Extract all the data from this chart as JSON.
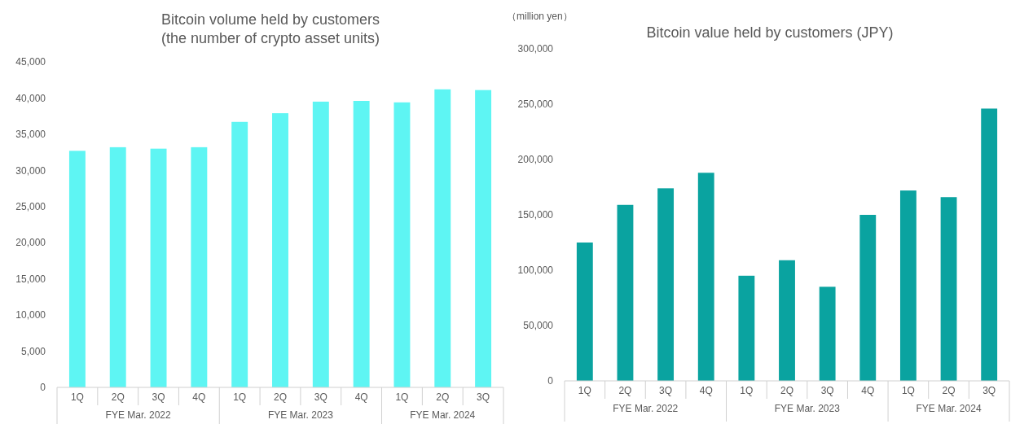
{
  "chart_data": [
    {
      "type": "bar",
      "title": "Bitcoin volume held by customers\n(the number of crypto asset units)",
      "categories": [
        "1Q",
        "2Q",
        "3Q",
        "4Q",
        "1Q",
        "2Q",
        "3Q",
        "4Q",
        "1Q",
        "2Q",
        "3Q"
      ],
      "values": [
        32700,
        33200,
        33000,
        33200,
        36700,
        37900,
        39500,
        39600,
        39400,
        41200,
        41100
      ],
      "color": "#5ef5f3",
      "ylim": [
        0,
        45000
      ],
      "yticks": [
        {
          "value": 0,
          "label": "0"
        },
        {
          "value": 5000,
          "label": "5,000"
        },
        {
          "value": 10000,
          "label": "10,000"
        },
        {
          "value": 15000,
          "label": "15,000"
        },
        {
          "value": 20000,
          "label": "20,000"
        },
        {
          "value": 25000,
          "label": "25,000"
        },
        {
          "value": 30000,
          "label": "30,000"
        },
        {
          "value": 35000,
          "label": "35,000"
        },
        {
          "value": 40000,
          "label": "40,000"
        },
        {
          "value": 45000,
          "label": "45,000"
        }
      ],
      "annotations": [
        "FYE Mar. 2022",
        "FYE Mar. 2023",
        "FYE Mar. 2024"
      ],
      "grid": false
    },
    {
      "type": "bar",
      "title": "Bitcoin value held by customers (JPY)",
      "ylabel": "（million yen）",
      "categories": [
        "1Q",
        "2Q",
        "3Q",
        "4Q",
        "1Q",
        "2Q",
        "3Q",
        "4Q",
        "1Q",
        "2Q",
        "3Q"
      ],
      "values": [
        125000,
        159000,
        174000,
        188000,
        95000,
        109000,
        85000,
        150000,
        172000,
        166000,
        246000
      ],
      "color": "#0aa3a0",
      "ylim": [
        0,
        300000
      ],
      "yticks": [
        {
          "value": 0,
          "label": "0"
        },
        {
          "value": 50000,
          "label": "50,000"
        },
        {
          "value": 100000,
          "label": "100,000"
        },
        {
          "value": 150000,
          "label": "150,000"
        },
        {
          "value": 200000,
          "label": "200,000"
        },
        {
          "value": 250000,
          "label": "250,000"
        },
        {
          "value": 300000,
          "label": "300,000"
        }
      ],
      "annotations": [
        "FYE Mar. 2022",
        "FYE Mar. 2023",
        "FYE Mar. 2024"
      ],
      "grid": false
    }
  ]
}
